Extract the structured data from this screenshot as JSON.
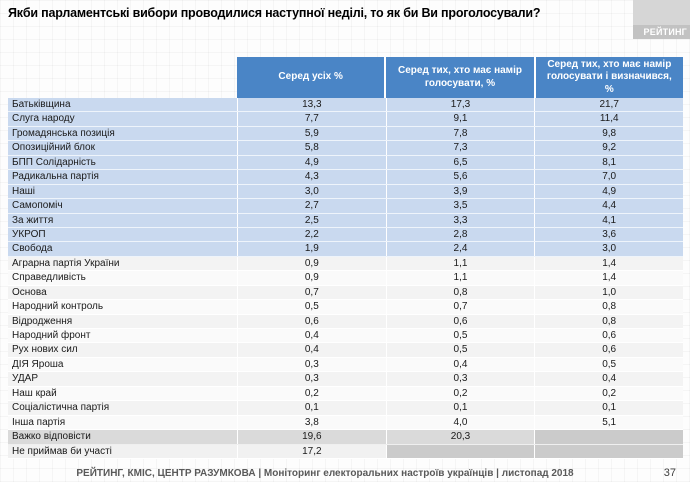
{
  "title": "Якби парламентські вибори проводилися наступної неділі, то як би Ви проголосували?",
  "logo": {
    "text": "РЕЙТИНГ"
  },
  "table": {
    "columns": [
      "Серед усіх %",
      "Серед тих, хто має намір голосувати, %",
      "Серед тих, хто має намір голосувати і визначився, %"
    ],
    "rows": [
      {
        "label": "Батьківщина",
        "values": [
          "13,3",
          "17,3",
          "21,7"
        ]
      },
      {
        "label": "Слуга народу",
        "values": [
          "7,7",
          "9,1",
          "11,4"
        ]
      },
      {
        "label": "Громадянська позиція",
        "values": [
          "5,9",
          "7,8",
          "9,8"
        ]
      },
      {
        "label": "Опозиційний блок",
        "values": [
          "5,8",
          "7,3",
          "9,2"
        ]
      },
      {
        "label": "БПП Солідарність",
        "values": [
          "4,9",
          "6,5",
          "8,1"
        ]
      },
      {
        "label": "Радикальна партія",
        "values": [
          "4,3",
          "5,6",
          "7,0"
        ]
      },
      {
        "label": "Наші",
        "values": [
          "3,0",
          "3,9",
          "4,9"
        ]
      },
      {
        "label": "Самопоміч",
        "values": [
          "2,7",
          "3,5",
          "4,4"
        ]
      },
      {
        "label": "За життя",
        "values": [
          "2,5",
          "3,3",
          "4,1"
        ]
      },
      {
        "label": "УКРОП",
        "values": [
          "2,2",
          "2,8",
          "3,6"
        ]
      },
      {
        "label": "Свобода",
        "values": [
          "1,9",
          "2,4",
          "3,0"
        ]
      },
      {
        "label": "Аграрна партія України",
        "values": [
          "0,9",
          "1,1",
          "1,4"
        ]
      },
      {
        "label": "Справедливість",
        "values": [
          "0,9",
          "1,1",
          "1,4"
        ]
      },
      {
        "label": "Основа",
        "values": [
          "0,7",
          "0,8",
          "1,0"
        ]
      },
      {
        "label": "Народний контроль",
        "values": [
          "0,5",
          "0,7",
          "0,8"
        ]
      },
      {
        "label": "Відродження",
        "values": [
          "0,6",
          "0,6",
          "0,8"
        ]
      },
      {
        "label": "Народний фронт",
        "values": [
          "0,4",
          "0,5",
          "0,6"
        ]
      },
      {
        "label": "Рух нових сил",
        "values": [
          "0,4",
          "0,5",
          "0,6"
        ]
      },
      {
        "label": "ДІЯ Яроша",
        "values": [
          "0,3",
          "0,4",
          "0,5"
        ]
      },
      {
        "label": "УДАР",
        "values": [
          "0,3",
          "0,3",
          "0,4"
        ]
      },
      {
        "label": "Наш край",
        "values": [
          "0,2",
          "0,2",
          "0,2"
        ]
      },
      {
        "label": "Соціалістична партія",
        "values": [
          "0,1",
          "0,1",
          "0,1"
        ]
      },
      {
        "label": "Інша партія",
        "values": [
          "3,8",
          "4,0",
          "5,1"
        ]
      },
      {
        "label": "Важко відповісти",
        "values": [
          "19,6",
          "20,3",
          ""
        ]
      },
      {
        "label": "Не приймав би участі",
        "values": [
          "17,2",
          "",
          ""
        ]
      }
    ]
  },
  "footer": {
    "source": "РЕЙТИНГ, КМІС, ЦЕНТР РАЗУМКОВА |  Моніторинг електоральних настроїв українців | листопад 2018",
    "page_number": "37"
  },
  "colors": {
    "header_bg": "#4a85c6",
    "header_text": "#ffffff",
    "row_blue": "#c9d9ef",
    "row_plain": "#f3f3f3",
    "row_plain_alt": "#fafafa",
    "row_gray": "#dadada",
    "row_last": "#f1f1f1",
    "cell_na": "#cbcbcb",
    "logo_bg": "#d6d6d6",
    "logo_band": "#c2c2c2",
    "footer_text": "#595959",
    "title_text": "#000000"
  },
  "chart_data": {
    "type": "table",
    "title": "Якби парламентські вибори проводилися наступної неділі, то як би Ви проголосували?",
    "categories": [
      "Батьківщина",
      "Слуга народу",
      "Громадянська позиція",
      "Опозиційний блок",
      "БПП Солідарність",
      "Радикальна партія",
      "Наші",
      "Самопоміч",
      "За життя",
      "УКРОП",
      "Свобода",
      "Аграрна партія України",
      "Справедливість",
      "Основа",
      "Народний контроль",
      "Відродження",
      "Народний фронт",
      "Рух нових сил",
      "ДІЯ Яроша",
      "УДАР",
      "Наш край",
      "Соціалістична партія",
      "Інша партія",
      "Важко відповісти",
      "Не приймав би участі"
    ],
    "series": [
      {
        "name": "Серед усіх %",
        "values": [
          13.3,
          7.7,
          5.9,
          5.8,
          4.9,
          4.3,
          3.0,
          2.7,
          2.5,
          2.2,
          1.9,
          0.9,
          0.9,
          0.7,
          0.5,
          0.6,
          0.4,
          0.4,
          0.3,
          0.3,
          0.2,
          0.1,
          3.8,
          19.6,
          17.2
        ]
      },
      {
        "name": "Серед тих, хто має намір голосувати, %",
        "values": [
          17.3,
          9.1,
          7.8,
          7.3,
          6.5,
          5.6,
          3.9,
          3.5,
          3.3,
          2.8,
          2.4,
          1.1,
          1.1,
          0.8,
          0.7,
          0.6,
          0.5,
          0.5,
          0.4,
          0.3,
          0.2,
          0.1,
          4.0,
          20.3,
          null
        ]
      },
      {
        "name": "Серед тих, хто має намір голосувати і визначився, %",
        "values": [
          21.7,
          11.4,
          9.8,
          9.2,
          8.1,
          7.0,
          4.9,
          4.4,
          4.1,
          3.6,
          3.0,
          1.4,
          1.4,
          1.0,
          0.8,
          0.8,
          0.6,
          0.6,
          0.5,
          0.4,
          0.2,
          0.1,
          5.1,
          null,
          null
        ]
      }
    ],
    "layout": {
      "legend": "column headers",
      "grid": false,
      "value_format": "percent, comma decimal separator"
    }
  }
}
